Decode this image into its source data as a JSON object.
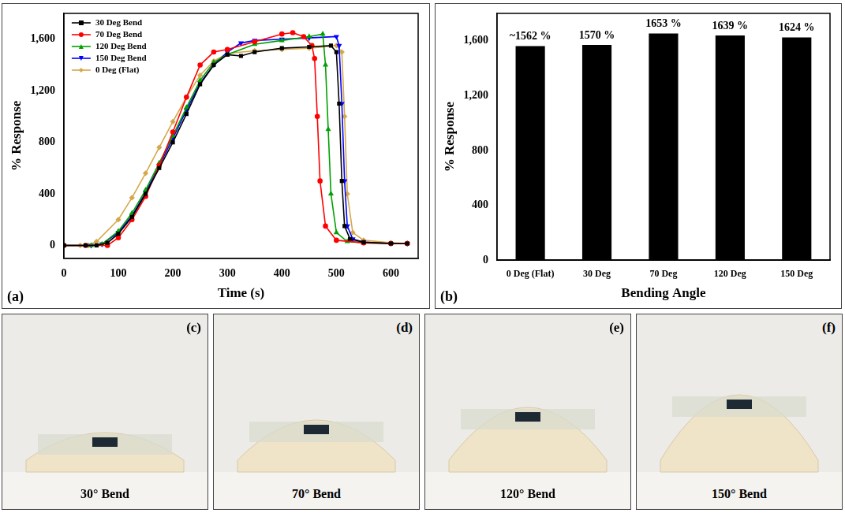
{
  "chart_data": [
    {
      "type": "line",
      "panel_label": "(a)",
      "x_label": "Time (s)",
      "y_label": "% Response",
      "xlim": [
        0,
        650
      ],
      "xticks": [
        0,
        100,
        200,
        300,
        400,
        500,
        600
      ],
      "ylim": [
        -100,
        1800
      ],
      "yticks": [
        0,
        400,
        800,
        1200,
        1600
      ],
      "grid": false,
      "legend": "upper left",
      "series": [
        {
          "name": "30 Deg Bend",
          "color": "#000000",
          "marker": "square",
          "x": [
            0,
            40,
            60,
            80,
            100,
            125,
            150,
            175,
            200,
            225,
            250,
            275,
            300,
            325,
            350,
            400,
            450,
            490,
            500,
            505,
            510,
            515,
            525,
            550,
            600,
            630
          ],
          "values": [
            0,
            0,
            0,
            20,
            90,
            220,
            400,
            600,
            800,
            1020,
            1250,
            1400,
            1480,
            1470,
            1500,
            1530,
            1540,
            1550,
            1500,
            1100,
            500,
            150,
            50,
            25,
            15,
            15
          ]
        },
        {
          "name": "70 Deg Bend",
          "color": "#ff0000",
          "marker": "circle",
          "x": [
            0,
            40,
            80,
            100,
            125,
            150,
            175,
            200,
            225,
            250,
            275,
            300,
            350,
            400,
            420,
            440,
            455,
            460,
            465,
            470,
            480,
            500,
            550,
            600,
            630
          ],
          "values": [
            0,
            0,
            0,
            60,
            200,
            380,
            620,
            880,
            1150,
            1400,
            1500,
            1520,
            1580,
            1640,
            1650,
            1620,
            1550,
            1450,
            1000,
            500,
            150,
            40,
            20,
            15,
            15
          ]
        },
        {
          "name": "120 Deg Bend",
          "color": "#00a000",
          "marker": "triangle",
          "x": [
            0,
            50,
            70,
            100,
            125,
            150,
            175,
            200,
            225,
            250,
            275,
            300,
            350,
            400,
            450,
            475,
            480,
            485,
            490,
            500,
            520,
            550,
            600,
            630
          ],
          "values": [
            0,
            0,
            10,
            110,
            250,
            430,
            640,
            850,
            1070,
            1280,
            1420,
            1480,
            1560,
            1590,
            1620,
            1640,
            1400,
            900,
            400,
            100,
            30,
            20,
            15,
            15
          ]
        },
        {
          "name": "150 Deg Bend",
          "color": "#0000ff",
          "marker": "triangle-down",
          "x": [
            0,
            50,
            70,
            100,
            125,
            150,
            175,
            200,
            225,
            250,
            275,
            300,
            325,
            350,
            400,
            450,
            500,
            505,
            510,
            515,
            520,
            530,
            550,
            600,
            630
          ],
          "values": [
            0,
            0,
            10,
            100,
            230,
            410,
            620,
            830,
            1050,
            1260,
            1400,
            1500,
            1570,
            1590,
            1600,
            1610,
            1620,
            1550,
            1100,
            500,
            150,
            50,
            25,
            15,
            15
          ]
        },
        {
          "name": "0 Deg (Flat)",
          "color": "#d4a84b",
          "marker": "diamond",
          "x": [
            0,
            30,
            45,
            60,
            100,
            125,
            150,
            175,
            200,
            225,
            250,
            275,
            300,
            350,
            400,
            450,
            500,
            510,
            515,
            520,
            530,
            550,
            600,
            630
          ],
          "values": [
            0,
            0,
            0,
            30,
            200,
            370,
            560,
            760,
            960,
            1150,
            1320,
            1430,
            1490,
            1510,
            1520,
            1530,
            1550,
            1500,
            1000,
            400,
            100,
            40,
            20,
            15
          ]
        }
      ]
    },
    {
      "type": "bar",
      "panel_label": "(b)",
      "x_label": "Bending Angle",
      "y_label": "% Response",
      "categories": [
        "0 Deg (Flat)",
        "30 Deg",
        "70 Deg",
        "120 Deg",
        "150 Deg"
      ],
      "values": [
        1562,
        1570,
        1653,
        1639,
        1624
      ],
      "value_labels": [
        "~1562 %",
        "1570 %",
        "1653 %",
        "1639 %",
        "1624 %"
      ],
      "color": "#000000",
      "data_labels": true,
      "grid": false,
      "ylim": [
        0,
        1800
      ],
      "yticks": [
        0,
        400,
        800,
        1200,
        1600
      ]
    }
  ],
  "photos": [
    {
      "panel_label": "(c)",
      "caption": "30° Bend"
    },
    {
      "panel_label": "(d)",
      "caption": "70° Bend"
    },
    {
      "panel_label": "(e)",
      "caption": "120° Bend"
    },
    {
      "panel_label": "(f)",
      "caption": "150° Bend"
    }
  ]
}
